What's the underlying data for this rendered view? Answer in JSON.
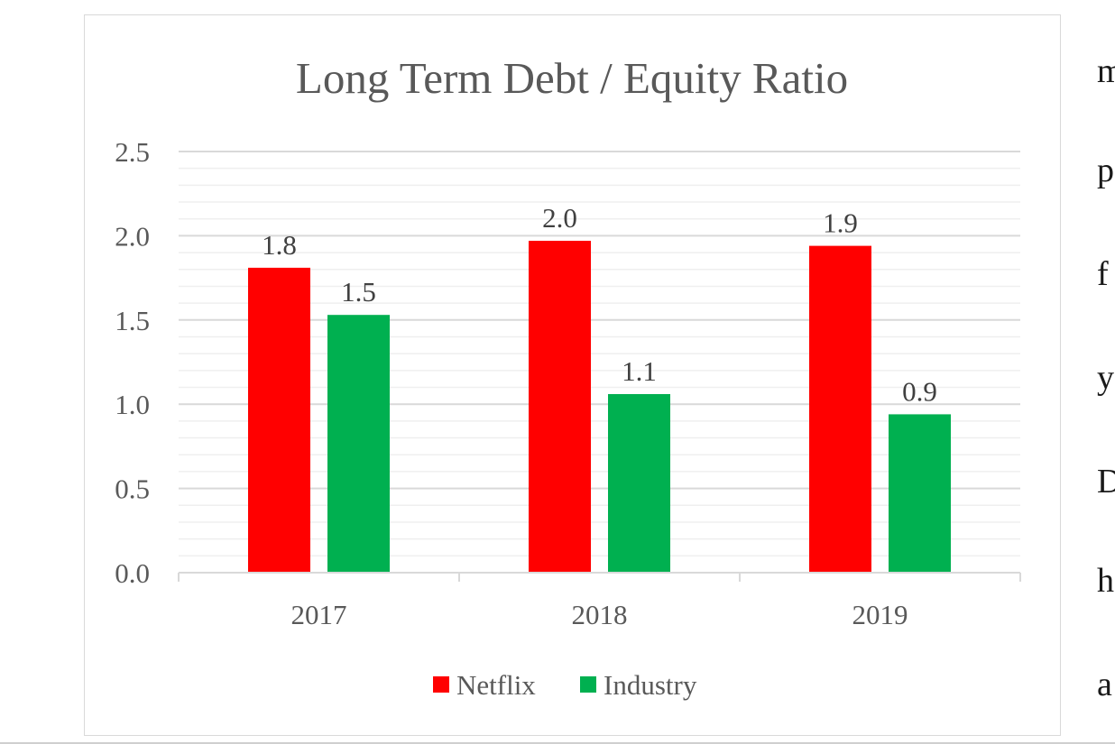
{
  "chart_data": {
    "type": "bar",
    "title": "Long Term Debt / Equity Ratio",
    "xlabel": "",
    "ylabel": "",
    "categories": [
      "2017",
      "2018",
      "2019"
    ],
    "series": [
      {
        "name": "Netflix",
        "values": [
          1.81,
          1.97,
          1.94
        ],
        "labels": [
          "1.8",
          "2.0",
          "1.9"
        ],
        "color": "#ff0000"
      },
      {
        "name": "Industry",
        "values": [
          1.53,
          1.06,
          0.94
        ],
        "labels": [
          "1.5",
          "1.1",
          "0.9"
        ],
        "color": "#00b050"
      }
    ],
    "ylim": [
      0,
      2.5
    ],
    "yticks": [
      "0.0",
      "0.5",
      "1.0",
      "1.5",
      "2.0",
      "2.5"
    ],
    "grid": true,
    "legend": "bottom"
  },
  "side_text": {
    "letters": [
      "m",
      "p",
      "f",
      "y",
      "D",
      "h",
      "a"
    ]
  }
}
